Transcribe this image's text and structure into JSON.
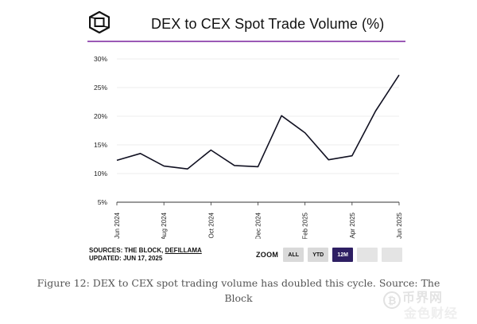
{
  "chart_data": {
    "type": "line",
    "title": "DEX to CEX Spot Trade Volume (%)",
    "xlabel": "",
    "ylabel": "",
    "ylim": [
      5,
      30
    ],
    "y_ticks": [
      "30%",
      "25%",
      "20%",
      "15%",
      "10%",
      "5%"
    ],
    "y_tick_values": [
      30,
      25,
      20,
      15,
      10,
      5
    ],
    "x_tick_labels": [
      "Jun 2024",
      "Aug 2024",
      "Oct 2024",
      "Dec 2024",
      "Feb 2025",
      "Apr 2025",
      "Jun 2025"
    ],
    "x_tick_positions": [
      0,
      2,
      4,
      6,
      8,
      10,
      12
    ],
    "x_range": [
      0,
      12
    ],
    "series": [
      {
        "name": "DEX to CEX Spot Trade Volume (%)",
        "color": "#111122",
        "x": [
          0,
          1,
          2,
          3,
          4,
          5,
          6,
          7,
          8,
          9,
          10,
          11,
          12
        ],
        "values": [
          12.3,
          13.5,
          11.3,
          10.8,
          14.1,
          11.4,
          11.2,
          20.1,
          17.1,
          12.4,
          13.1,
          20.9,
          27.2
        ]
      }
    ],
    "grid": true
  },
  "logo": {
    "icon": "the-block-cube-icon"
  },
  "sources": {
    "prefix": "SOURCES: THE BLOCK, ",
    "link": "DEFILLAMA",
    "updated": "UPDATED: JUN 17, 2025"
  },
  "zoom": {
    "label": "ZOOM",
    "buttons": [
      {
        "label": "ALL",
        "active": false
      },
      {
        "label": "YTD",
        "active": false
      },
      {
        "label": "12M",
        "active": true
      },
      {
        "label": "",
        "active": false
      },
      {
        "label": "",
        "active": false
      }
    ]
  },
  "caption": "Figure 12: DEX to CEX spot trading volume has doubled this cycle. Source: The Block",
  "watermark": {
    "top": "币界网",
    "bottom": "金色财经"
  },
  "colors": {
    "accent_rule": "#9b59b6",
    "active_zoom": "#2e1f63",
    "grid": "#e6e6e6"
  }
}
